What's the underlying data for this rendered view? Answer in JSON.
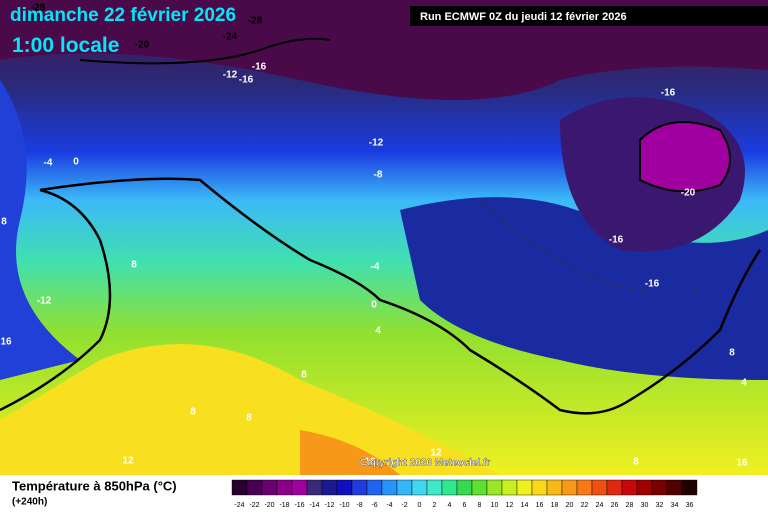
{
  "header": {
    "date": "dimanche 22 février 2026",
    "time": "1:00 locale",
    "run": "Run ECMWF 0Z du jeudi 12 février 2026"
  },
  "map": {
    "contour_labels": [
      "-28",
      "-28",
      "-24",
      "-20",
      "-12",
      "-16",
      "-16",
      "-16",
      "-12",
      "-8",
      "-4",
      "0",
      "-20",
      "-16",
      "-4",
      "-16",
      "8",
      "-12",
      "0",
      "4",
      "16",
      "8",
      "8",
      "8",
      "8",
      "8",
      "4",
      "8",
      "12",
      "12",
      "16",
      "16"
    ],
    "copyright": "Copyright 2026 Meteociel.fr"
  },
  "legend": {
    "title": "Température à 850hPa (°C)",
    "subtitle": "(+240h)",
    "labels": [
      "-24",
      "-22",
      "-20",
      "-18",
      "-16",
      "-14",
      "-12",
      "-10",
      "-8",
      "-6",
      "-4",
      "-2",
      "0",
      "2",
      "4",
      "6",
      "8",
      "10",
      "12",
      "14",
      "16",
      "18",
      "20",
      "22",
      "24",
      "26",
      "28",
      "30",
      "32",
      "34",
      "36"
    ],
    "colors": [
      "#2a0030",
      "#4a0050",
      "#6a0070",
      "#8a008a",
      "#a000a0",
      "#3a2878",
      "#1a1a90",
      "#1010c0",
      "#1e3ce0",
      "#1e64f0",
      "#2894f8",
      "#34b8f8",
      "#40d8f0",
      "#40e8c8",
      "#30e890",
      "#38d850",
      "#60e030",
      "#98e828",
      "#c8f020",
      "#f0f020",
      "#f8d818",
      "#f8b818",
      "#f89818",
      "#f87818",
      "#f05010",
      "#e02810",
      "#c80808",
      "#a00000",
      "#780000",
      "#500000",
      "#200000"
    ]
  }
}
